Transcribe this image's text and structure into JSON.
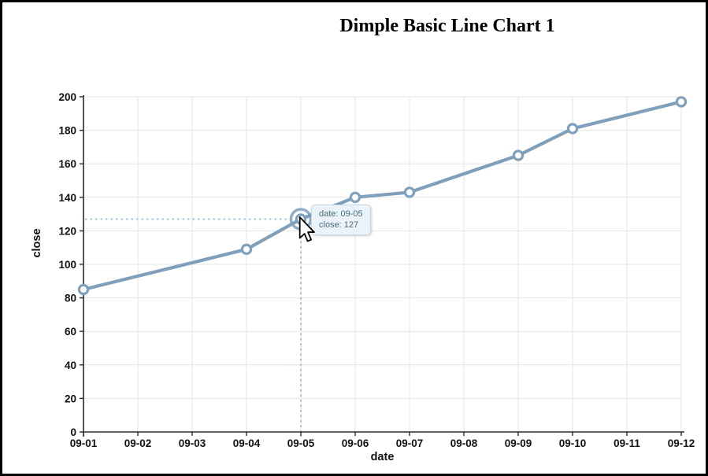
{
  "page": {
    "title": "Dimple Basic Line Chart 1"
  },
  "chart_data": {
    "type": "line",
    "title": "Dimple Basic Line Chart 1",
    "xlabel": "date",
    "ylabel": "close",
    "categories": [
      "09-01",
      "09-02",
      "09-03",
      "09-04",
      "09-05",
      "09-06",
      "09-07",
      "09-08",
      "09-09",
      "09-10",
      "09-11",
      "09-12"
    ],
    "points": [
      {
        "date": "09-01",
        "close": 85
      },
      {
        "date": "09-04",
        "close": 109
      },
      {
        "date": "09-05",
        "close": 127
      },
      {
        "date": "09-06",
        "close": 140
      },
      {
        "date": "09-07",
        "close": 143
      },
      {
        "date": "09-09",
        "close": 165
      },
      {
        "date": "09-10",
        "close": 181
      },
      {
        "date": "09-12",
        "close": 197
      }
    ],
    "ylim": [
      0,
      200
    ],
    "ytick_step": 20,
    "grid": true,
    "legend": "none"
  },
  "hover": {
    "date": "09-05",
    "close": 127
  },
  "tooltip": {
    "line1": "date: 09-05",
    "line2": "close: 127"
  },
  "colors": {
    "line": "#7f9fbb",
    "marker_fill": "#ffffff",
    "grid": "#e4e4e4",
    "axis": "#2b2b2b",
    "tick_text": "#111111",
    "crosshair": "#a5c3da",
    "tooltip_bg": "#eaf3f9",
    "tooltip_border": "#c3d9e8",
    "tooltip_text": "#4a6a80",
    "title_text": "#000000"
  }
}
